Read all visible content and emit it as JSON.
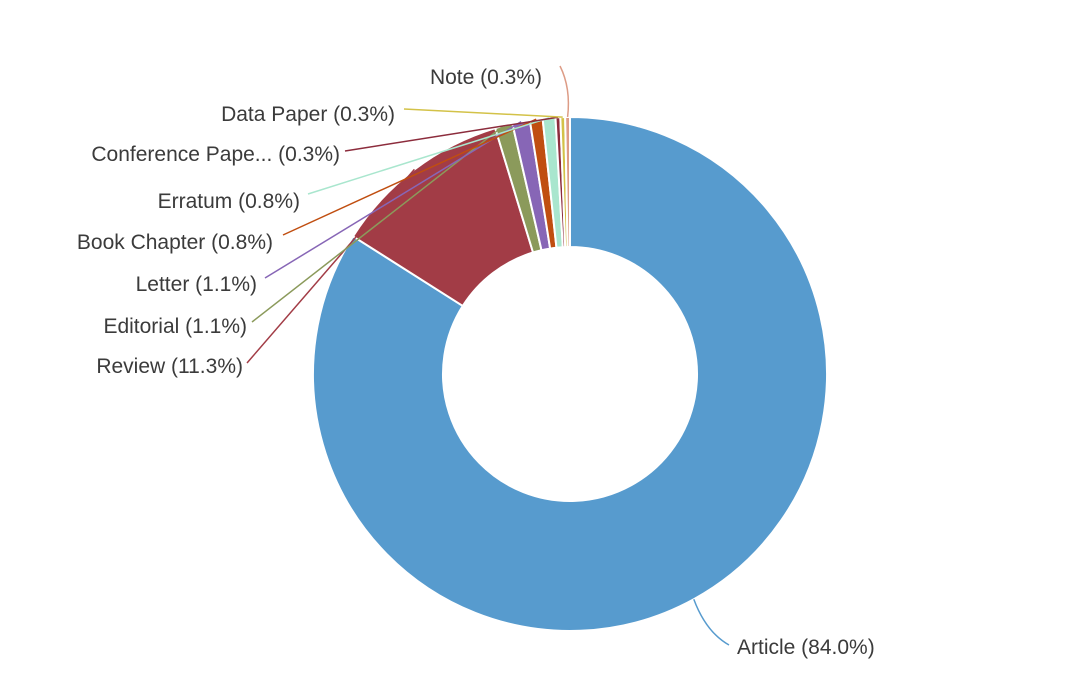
{
  "canvas": {
    "background": "#ffffff",
    "label_text_color": "#3b3b3b",
    "slice_border_color": "#ffffff"
  },
  "chart_data": {
    "type": "pie",
    "variant": "donut",
    "title": "",
    "legend_position": "none",
    "labels_style": "outside-callouts-with-leader-lines",
    "direction": "clockwise",
    "start_angle_deg": 0,
    "total": 100.0,
    "hole_ratio": 0.49,
    "slices": [
      {
        "name": "Article",
        "value": 84.0,
        "label": "Article (84.0%)",
        "color": "#579bce"
      },
      {
        "name": "Review",
        "value": 11.3,
        "label": "Review (11.3%)",
        "color": "#a23c46"
      },
      {
        "name": "Editorial",
        "value": 1.1,
        "label": "Editorial (1.1%)",
        "color": "#8b9a5b"
      },
      {
        "name": "Letter",
        "value": 1.1,
        "label": "Letter (1.1%)",
        "color": "#8766b6"
      },
      {
        "name": "Book Chapter",
        "value": 0.8,
        "label": "Book Chapter (0.8%)",
        "color": "#c04e10"
      },
      {
        "name": "Erratum",
        "value": 0.8,
        "label": "Erratum (0.8%)",
        "color": "#a9e6ce"
      },
      {
        "name": "Conference Paper",
        "value": 0.3,
        "label": "Conference Pape... (0.3%)",
        "color": "#8c2c3c"
      },
      {
        "name": "Data Paper",
        "value": 0.3,
        "label": "Data Paper (0.3%)",
        "color": "#d3c248"
      },
      {
        "name": "Note",
        "value": 0.3,
        "label": "Note (0.3%)",
        "color": "#dd9c86"
      }
    ]
  }
}
